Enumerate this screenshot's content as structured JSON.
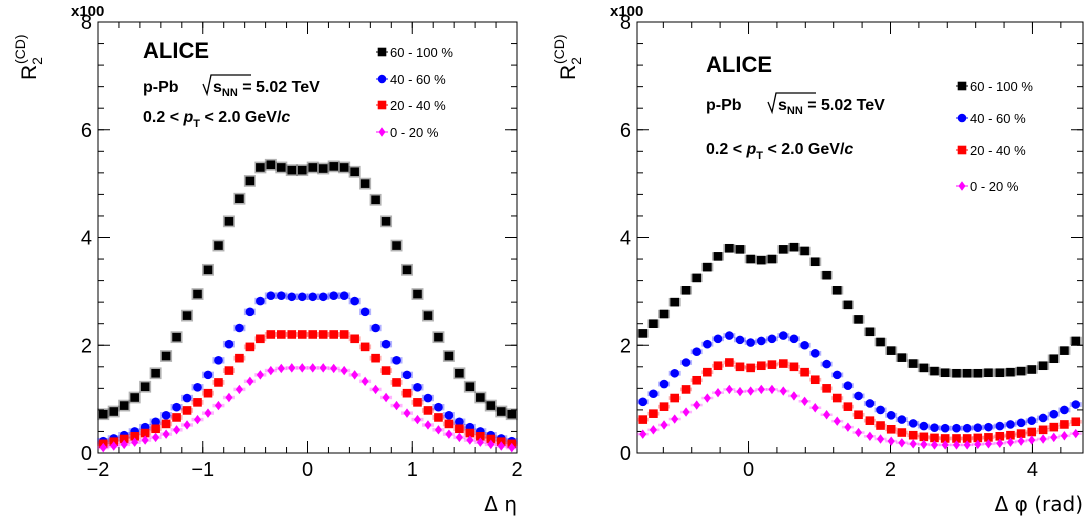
{
  "chart_data": [
    {
      "type": "scatter",
      "xlabel": "Δ η",
      "ylabel": "R2(CD)",
      "ylabel_base": "R",
      "ylabel_sub": "2",
      "ylabel_sup": "(CD)",
      "y_multiplier": "x100",
      "xlim": [
        -2,
        2
      ],
      "ylim": [
        0,
        8
      ],
      "x_ticks": [
        "−2",
        "−1",
        "0",
        "1",
        "2"
      ],
      "x_tick_values": [
        -2,
        -1,
        0,
        1,
        2
      ],
      "y_ticks": [
        "0",
        "2",
        "4",
        "6",
        "8"
      ],
      "y_tick_values": [
        0,
        2,
        4,
        6,
        8
      ],
      "annotations": {
        "experiment": "ALICE",
        "system": "p-Pb",
        "energy_sqrt": "s",
        "energy_sub": "NN",
        "energy_value": " = 5.02 TeV",
        "pt_prefix": "0.2 < ",
        "pt_p": "p",
        "pt_sub": "T",
        "pt_mid": " < 2.0 GeV/",
        "pt_c": "c"
      },
      "legend": [
        "60 - 100 %",
        "40 - 60 %",
        "20 - 40 %",
        "0 - 20 %"
      ],
      "legend_placement": "top-right",
      "x": [
        -1.95,
        -1.85,
        -1.75,
        -1.65,
        -1.55,
        -1.45,
        -1.35,
        -1.25,
        -1.15,
        -1.05,
        -0.95,
        -0.85,
        -0.75,
        -0.65,
        -0.55,
        -0.45,
        -0.35,
        -0.25,
        -0.15,
        -0.05,
        0.05,
        0.15,
        0.25,
        0.35,
        0.45,
        0.55,
        0.65,
        0.75,
        0.85,
        0.95,
        1.05,
        1.15,
        1.25,
        1.35,
        1.45,
        1.55,
        1.65,
        1.75,
        1.85,
        1.95
      ],
      "series": [
        {
          "name": "60 - 100 %",
          "color": "#000000",
          "marker": "square",
          "values": [
            0.72,
            0.77,
            0.88,
            1.03,
            1.23,
            1.48,
            1.8,
            2.15,
            2.55,
            2.95,
            3.4,
            3.85,
            4.3,
            4.72,
            5.05,
            5.3,
            5.35,
            5.3,
            5.25,
            5.25,
            5.3,
            5.28,
            5.32,
            5.3,
            5.22,
            5.0,
            4.7,
            4.3,
            3.85,
            3.4,
            2.95,
            2.55,
            2.15,
            1.8,
            1.48,
            1.23,
            1.03,
            0.88,
            0.77,
            0.72
          ]
        },
        {
          "name": "40 - 60 %",
          "color": "#0000ff",
          "marker": "circle",
          "values": [
            0.22,
            0.27,
            0.33,
            0.4,
            0.48,
            0.58,
            0.7,
            0.85,
            1.02,
            1.22,
            1.45,
            1.72,
            2.02,
            2.32,
            2.62,
            2.82,
            2.92,
            2.92,
            2.9,
            2.9,
            2.9,
            2.9,
            2.92,
            2.92,
            2.82,
            2.62,
            2.32,
            2.02,
            1.72,
            1.45,
            1.22,
            1.02,
            0.85,
            0.7,
            0.58,
            0.48,
            0.4,
            0.33,
            0.27,
            0.22
          ]
        },
        {
          "name": "20 - 40 %",
          "color": "#ff0000",
          "marker": "square",
          "values": [
            0.17,
            0.21,
            0.26,
            0.31,
            0.37,
            0.45,
            0.54,
            0.66,
            0.79,
            0.94,
            1.11,
            1.31,
            1.53,
            1.76,
            1.97,
            2.12,
            2.2,
            2.2,
            2.2,
            2.2,
            2.2,
            2.2,
            2.2,
            2.2,
            2.12,
            1.97,
            1.76,
            1.53,
            1.31,
            1.11,
            0.94,
            0.79,
            0.66,
            0.54,
            0.45,
            0.37,
            0.31,
            0.26,
            0.21,
            0.17
          ]
        },
        {
          "name": "0 - 20 %",
          "color": "#ff00ff",
          "marker": "diamond",
          "values": [
            0.1,
            0.13,
            0.16,
            0.2,
            0.24,
            0.29,
            0.35,
            0.43,
            0.52,
            0.62,
            0.74,
            0.88,
            1.03,
            1.18,
            1.33,
            1.45,
            1.53,
            1.57,
            1.58,
            1.58,
            1.58,
            1.58,
            1.57,
            1.53,
            1.45,
            1.33,
            1.18,
            1.03,
            0.88,
            0.74,
            0.62,
            0.52,
            0.43,
            0.35,
            0.29,
            0.24,
            0.2,
            0.16,
            0.13,
            0.1
          ]
        }
      ]
    },
    {
      "type": "scatter",
      "xlabel": "Δ φ (rad)",
      "ylabel": "R2(CD)",
      "ylabel_base": "R",
      "ylabel_sub": "2",
      "ylabel_sup": "(CD)",
      "y_multiplier": "x100",
      "xlim": [
        -1.571,
        4.712
      ],
      "ylim": [
        0,
        8
      ],
      "x_ticks": [
        "0",
        "2",
        "4"
      ],
      "x_tick_values": [
        0,
        2,
        4
      ],
      "y_ticks": [
        "0",
        "2",
        "4",
        "6",
        "8"
      ],
      "y_tick_values": [
        0,
        2,
        4,
        6,
        8
      ],
      "annotations": {
        "experiment": "ALICE",
        "system": "p-Pb",
        "energy_sqrt": "s",
        "energy_sub": "NN",
        "energy_value": " = 5.02 TeV",
        "pt_prefix": "0.2 < ",
        "pt_p": "p",
        "pt_sub": "T",
        "pt_mid": " < 2.0 GeV/",
        "pt_c": "c"
      },
      "legend": [
        "60 - 100 %",
        "40 - 60 %",
        "20 - 40 %",
        "0 - 20 %"
      ],
      "legend_placement": "top-right",
      "x": [
        -1.49,
        -1.34,
        -1.19,
        -1.04,
        -0.88,
        -0.73,
        -0.58,
        -0.43,
        -0.27,
        -0.12,
        0.03,
        0.18,
        0.33,
        0.49,
        0.64,
        0.79,
        0.94,
        1.1,
        1.25,
        1.4,
        1.55,
        1.71,
        1.86,
        2.01,
        2.16,
        2.32,
        2.47,
        2.62,
        2.77,
        2.93,
        3.08,
        3.23,
        3.38,
        3.54,
        3.69,
        3.84,
        3.99,
        4.15,
        4.3,
        4.45,
        4.61
      ],
      "series": [
        {
          "name": "60 - 100 %",
          "color": "#000000",
          "marker": "square",
          "values": [
            2.22,
            2.4,
            2.58,
            2.8,
            3.02,
            3.25,
            3.45,
            3.65,
            3.8,
            3.78,
            3.6,
            3.58,
            3.6,
            3.78,
            3.82,
            3.75,
            3.55,
            3.3,
            3.02,
            2.75,
            2.48,
            2.25,
            2.06,
            1.9,
            1.77,
            1.66,
            1.58,
            1.52,
            1.49,
            1.48,
            1.48,
            1.48,
            1.49,
            1.49,
            1.5,
            1.52,
            1.55,
            1.62,
            1.75,
            1.9,
            2.08
          ]
        },
        {
          "name": "40 - 60 %",
          "color": "#0000ff",
          "marker": "circle",
          "values": [
            0.95,
            1.1,
            1.28,
            1.48,
            1.68,
            1.88,
            2.02,
            2.12,
            2.18,
            2.1,
            2.05,
            2.08,
            2.12,
            2.18,
            2.12,
            2.0,
            1.85,
            1.65,
            1.45,
            1.25,
            1.06,
            0.92,
            0.8,
            0.7,
            0.62,
            0.55,
            0.5,
            0.47,
            0.46,
            0.46,
            0.46,
            0.47,
            0.48,
            0.5,
            0.53,
            0.56,
            0.6,
            0.65,
            0.72,
            0.8,
            0.9
          ]
        },
        {
          "name": "20 - 40 %",
          "color": "#ff0000",
          "marker": "square",
          "values": [
            0.62,
            0.73,
            0.86,
            1.02,
            1.18,
            1.35,
            1.5,
            1.62,
            1.68,
            1.6,
            1.58,
            1.62,
            1.64,
            1.66,
            1.6,
            1.5,
            1.36,
            1.2,
            1.02,
            0.86,
            0.71,
            0.6,
            0.51,
            0.44,
            0.38,
            0.33,
            0.3,
            0.28,
            0.27,
            0.27,
            0.27,
            0.28,
            0.29,
            0.31,
            0.33,
            0.36,
            0.39,
            0.43,
            0.48,
            0.53,
            0.58
          ]
        },
        {
          "name": "0 - 20 %",
          "color": "#ff00ff",
          "marker": "diamond",
          "values": [
            0.35,
            0.43,
            0.52,
            0.63,
            0.76,
            0.89,
            1.02,
            1.12,
            1.18,
            1.14,
            1.15,
            1.18,
            1.18,
            1.15,
            1.06,
            0.96,
            0.84,
            0.71,
            0.59,
            0.48,
            0.38,
            0.31,
            0.26,
            0.22,
            0.19,
            0.17,
            0.16,
            0.15,
            0.15,
            0.15,
            0.15,
            0.16,
            0.17,
            0.18,
            0.2,
            0.22,
            0.24,
            0.26,
            0.29,
            0.32,
            0.36
          ]
        }
      ]
    }
  ]
}
